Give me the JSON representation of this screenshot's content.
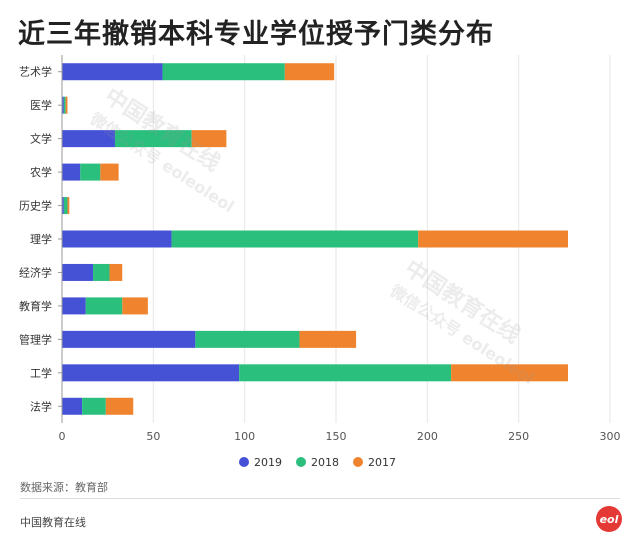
{
  "title": "近三年撤销本科专业学位授予门类分布",
  "source": "数据来源：教育部",
  "footer": "中国教育在线",
  "watermark": {
    "line1": "中国教育在线",
    "line2": "微信公众号 eoleoleol"
  },
  "logo_text": "eol",
  "colors": {
    "2019": "#4552d6",
    "2018": "#2bbf7e",
    "2017": "#f0842e"
  },
  "chart_data": {
    "type": "bar",
    "orientation": "horizontal",
    "stacked": true,
    "categories": [
      "艺术学",
      "医学",
      "文学",
      "农学",
      "历史学",
      "理学",
      "经济学",
      "教育学",
      "管理学",
      "工学",
      "法学"
    ],
    "series": [
      {
        "name": "2019",
        "values": [
          55,
          1,
          29,
          10,
          1,
          60,
          17,
          13,
          73,
          97,
          11
        ]
      },
      {
        "name": "2018",
        "values": [
          67,
          1,
          42,
          11,
          2,
          135,
          9,
          20,
          57,
          116,
          13
        ]
      },
      {
        "name": "2017",
        "values": [
          27,
          1,
          19,
          10,
          1,
          82,
          7,
          14,
          31,
          64,
          15
        ]
      }
    ],
    "xlim": [
      0,
      300
    ],
    "x_ticks": [
      0,
      50,
      100,
      150,
      200,
      250,
      300
    ],
    "legend_position": "bottom",
    "grid": true
  }
}
